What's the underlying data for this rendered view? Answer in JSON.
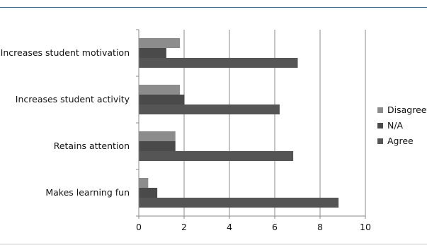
{
  "chart_data": {
    "type": "bar",
    "orientation": "horizontal",
    "categories": [
      "Increases student motivation",
      "Increases student activity",
      "Retains attention",
      "Makes learning fun"
    ],
    "series": [
      {
        "name": "Disagree",
        "color": "#8c8c8c",
        "values": [
          1.8,
          1.8,
          1.6,
          0.4
        ]
      },
      {
        "name": "N/A",
        "color": "#4a4a4a",
        "values": [
          1.2,
          2.0,
          1.6,
          0.8
        ]
      },
      {
        "name": "Agree",
        "color": "#555555",
        "values": [
          7.0,
          6.2,
          6.8,
          8.8
        ]
      }
    ],
    "x_ticks": [
      0,
      2,
      4,
      6,
      8,
      10
    ],
    "xlim": [
      0,
      10
    ],
    "grid": "vertical",
    "legend_position": "right",
    "legend_labels": [
      "Disagree",
      "N/A",
      "Agree"
    ]
  }
}
